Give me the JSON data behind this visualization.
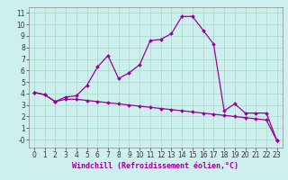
{
  "title": "",
  "xlabel": "Windchill (Refroidissement éolien,°C)",
  "ylabel": "",
  "background_color": "#cdf0ee",
  "line_color": "#990099",
  "grid_color": "#aaddcc",
  "xlim": [
    -0.5,
    23.5
  ],
  "ylim": [
    -0.7,
    11.5
  ],
  "xticks": [
    0,
    1,
    2,
    3,
    4,
    5,
    6,
    7,
    8,
    9,
    10,
    11,
    12,
    13,
    14,
    15,
    16,
    17,
    18,
    19,
    20,
    21,
    22,
    23
  ],
  "yticks": [
    0,
    1,
    2,
    3,
    4,
    5,
    6,
    7,
    8,
    9,
    10,
    11
  ],
  "curve1_x": [
    0,
    1,
    2,
    3,
    4,
    5,
    6,
    7,
    8,
    9,
    10,
    11,
    12,
    13,
    14,
    15,
    16,
    17,
    18,
    19,
    20,
    21,
    22,
    23
  ],
  "curve1_y": [
    4.1,
    3.9,
    3.3,
    3.7,
    3.8,
    4.7,
    6.3,
    7.3,
    5.3,
    5.8,
    6.5,
    8.6,
    8.7,
    9.2,
    10.7,
    10.7,
    9.5,
    8.3,
    2.5,
    3.1,
    2.3,
    2.3,
    2.3,
    -0.1
  ],
  "curve2_x": [
    0,
    1,
    2,
    3,
    4,
    5,
    6,
    7,
    8,
    9,
    10,
    11,
    12,
    13,
    14,
    15,
    16,
    17,
    18,
    19,
    20,
    21,
    22,
    23
  ],
  "curve2_y": [
    4.1,
    3.9,
    3.3,
    3.5,
    3.5,
    3.4,
    3.3,
    3.2,
    3.1,
    3.0,
    2.9,
    2.8,
    2.7,
    2.6,
    2.5,
    2.4,
    2.3,
    2.2,
    2.1,
    2.0,
    1.9,
    1.8,
    1.7,
    -0.1
  ],
  "marker": "D",
  "markersize": 2.0,
  "linewidth": 0.9,
  "xlabel_fontsize": 6,
  "tick_fontsize": 5.5
}
